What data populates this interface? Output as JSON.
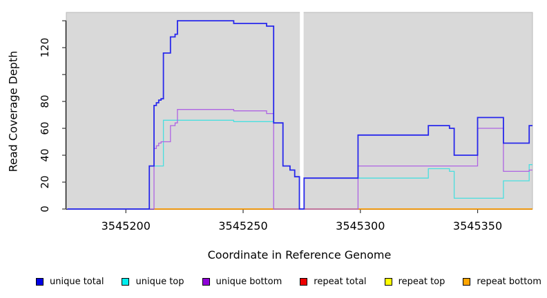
{
  "figure": {
    "x_title": "Coordinate in Reference Genome",
    "y_title": "Read Coverage Depth"
  },
  "chart_data": {
    "type": "line",
    "subtype": "step",
    "title": "",
    "xlabel": "Coordinate in Reference Genome",
    "ylabel": "Read Coverage Depth",
    "plot_background": "#d9d9d9",
    "panel_border_color": "#b8b8b8",
    "axis_color": "#000000",
    "x_axis": {
      "range": [
        3545174.6,
        3545373.4
      ],
      "ticks": [
        3545200,
        3545250,
        3545300,
        3545350
      ],
      "tick_labels": [
        "3545200",
        "3545250",
        "3545300",
        "3545350"
      ]
    },
    "y_axis": {
      "range": [
        0,
        146.2
      ],
      "ticks": [
        0,
        20,
        40,
        60,
        80,
        100,
        120,
        140
      ],
      "labeled_ticks": [
        0,
        20,
        40,
        60,
        80,
        120
      ],
      "grid": false
    },
    "white_gap_band": {
      "x_start": 3545274.2,
      "x_end": 3545275.8,
      "color": "#ffffff"
    },
    "draw_order": [
      3,
      4,
      5,
      1,
      2,
      0
    ],
    "series": [
      {
        "name": "unique total",
        "line_color": "#2727ec",
        "legend_color": "#0000e6",
        "line_width": 1.8,
        "points": [
          [
            3545175,
            0
          ],
          [
            3545210,
            32
          ],
          [
            3545212,
            77
          ],
          [
            3545213,
            79
          ],
          [
            3545214,
            81
          ],
          [
            3545215,
            82
          ],
          [
            3545216,
            116
          ],
          [
            3545219,
            128
          ],
          [
            3545221,
            130
          ],
          [
            3545222,
            140
          ],
          [
            3545246,
            138
          ],
          [
            3545260,
            136
          ],
          [
            3545263,
            64
          ],
          [
            3545267,
            32
          ],
          [
            3545270,
            29
          ],
          [
            3545272,
            24
          ],
          [
            3545274,
            0
          ],
          [
            3545276,
            23
          ],
          [
            3545299,
            55
          ],
          [
            3545329,
            62
          ],
          [
            3545338,
            60
          ],
          [
            3545340,
            40
          ],
          [
            3545350,
            68
          ],
          [
            3545361,
            49
          ],
          [
            3545372,
            62
          ]
        ]
      },
      {
        "name": "unique top",
        "line_color": "#49dfdf",
        "legend_color": "#00eeee",
        "line_width": 1.3,
        "points": [
          [
            3545175,
            0
          ],
          [
            3545210,
            32
          ],
          [
            3545216,
            66
          ],
          [
            3545246,
            65
          ],
          [
            3545263,
            64
          ],
          [
            3545267,
            32
          ],
          [
            3545270,
            29
          ],
          [
            3545272,
            24
          ],
          [
            3545274,
            0
          ],
          [
            3545276,
            23
          ],
          [
            3545329,
            30
          ],
          [
            3545338,
            28
          ],
          [
            3545340,
            8
          ],
          [
            3545361,
            21
          ],
          [
            3545372,
            33
          ]
        ]
      },
      {
        "name": "unique bottom",
        "line_color": "#ae63e3",
        "legend_color": "#8f00d8",
        "line_width": 1.3,
        "points": [
          [
            3545175,
            0
          ],
          [
            3545212,
            45
          ],
          [
            3545213,
            47
          ],
          [
            3545214,
            49
          ],
          [
            3545215,
            50
          ],
          [
            3545219,
            62
          ],
          [
            3545221,
            64
          ],
          [
            3545222,
            74
          ],
          [
            3545246,
            73
          ],
          [
            3545260,
            71
          ],
          [
            3545263,
            0
          ],
          [
            3545299,
            32
          ],
          [
            3545350,
            60
          ],
          [
            3545361,
            28
          ],
          [
            3545372,
            29
          ]
        ]
      },
      {
        "name": "repeat total",
        "line_color": "#ee0000",
        "legend_color": "#ee0000",
        "line_width": 1.2,
        "points": [
          [
            3545212,
            0
          ]
        ]
      },
      {
        "name": "repeat top",
        "line_color": "#ffff00",
        "legend_color": "#ffff00",
        "line_width": 1.2,
        "points": [
          [
            3545212,
            0
          ]
        ]
      },
      {
        "name": "repeat bottom",
        "line_color": "#ff9c00",
        "legend_color": "#ffa500",
        "line_width": 1.6,
        "points": [
          [
            3545212,
            0
          ]
        ]
      }
    ],
    "legend": {
      "position": "bottom",
      "items": [
        "unique total",
        "unique top",
        "unique bottom",
        "repeat total",
        "repeat top",
        "repeat bottom"
      ]
    }
  }
}
